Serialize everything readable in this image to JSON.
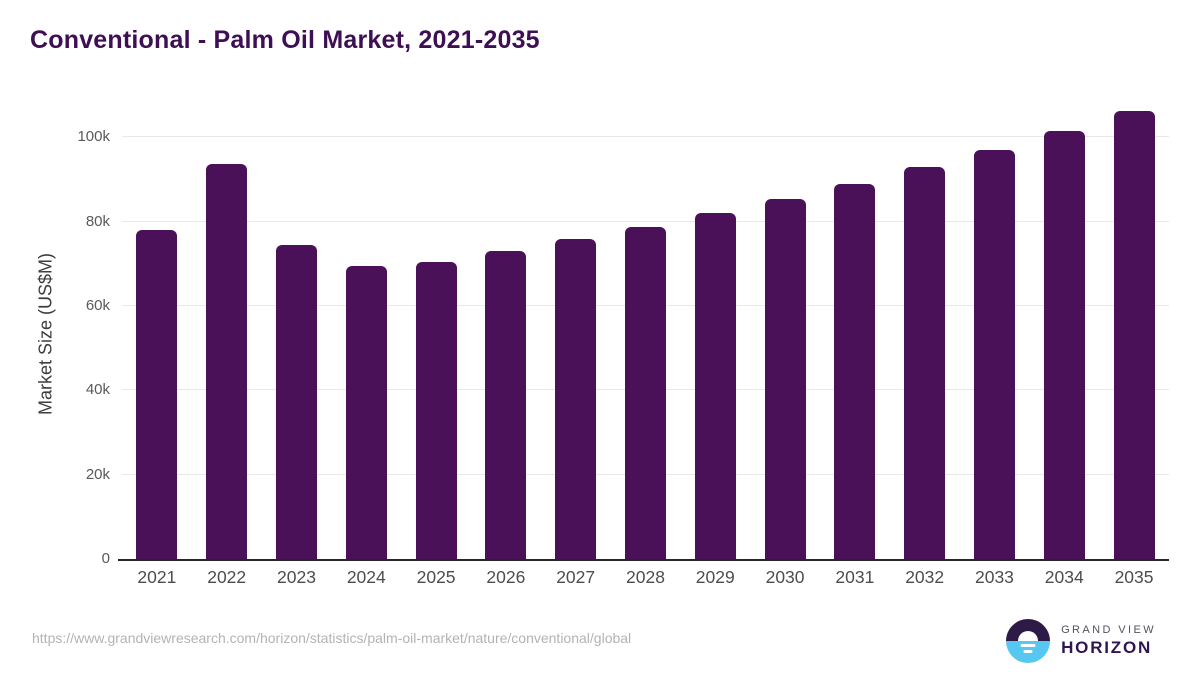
{
  "chart_data": {
    "type": "bar",
    "title": "Conventional - Palm Oil Market, 2021-2035",
    "xlabel": "",
    "ylabel": "Market Size (US$M)",
    "categories": [
      "2021",
      "2022",
      "2023",
      "2024",
      "2025",
      "2026",
      "2027",
      "2028",
      "2029",
      "2030",
      "2031",
      "2032",
      "2033",
      "2034",
      "2035"
    ],
    "values": [
      78000,
      93700,
      74400,
      69600,
      70400,
      73000,
      75800,
      78700,
      82100,
      85300,
      89000,
      92900,
      97000,
      101500,
      106300
    ],
    "yticks": [
      0,
      20000,
      40000,
      60000,
      80000,
      100000
    ],
    "ytick_labels": [
      "0",
      "20k",
      "40k",
      "60k",
      "80k",
      "100k"
    ],
    "ylim": [
      0,
      106700
    ],
    "grid": true,
    "legend_position": "none"
  },
  "footer": {
    "url": "https://www.grandviewresearch.com/horizon/statistics/palm-oil-market/nature/conventional/global",
    "logo": {
      "line1": "GRAND VIEW",
      "line2": "HORIZON"
    }
  },
  "colors": {
    "title": "#3e0f53",
    "bar": "#4a1158",
    "grid": "#e8e8e8",
    "axis_line": "#262626",
    "tick_label": "#595959",
    "x_label": "#4d4d4d",
    "url": "#b3b3b3",
    "logo_dark": "#2e1a47",
    "logo_blue": "#56c7f0"
  }
}
